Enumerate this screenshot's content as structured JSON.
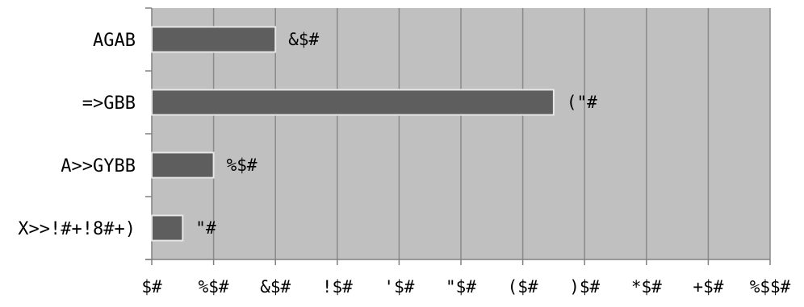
{
  "chart_data": {
    "type": "bar",
    "orientation": "horizontal",
    "categories": [
      "AGAB",
      "=>GBB",
      "A>>GYBB",
      "X>>!#+!8#+)"
    ],
    "values": [
      20,
      65,
      10,
      5
    ],
    "data_labels": [
      "&$#",
      "(\"#",
      "%$#",
      "\"#"
    ],
    "x_ticks": [
      "$#",
      "%$#",
      "&$#",
      "!$#",
      "'$#",
      "\"$#",
      "($#",
      ")$#",
      "*$#",
      "+$#",
      "%$$#"
    ],
    "xlim": [
      0,
      100
    ],
    "x_step": 10,
    "grid": true,
    "title": "",
    "xlabel": "",
    "ylabel": "",
    "colors": {
      "plot_bg": "#c0c0c0",
      "bar_fill": "#5e5e5e",
      "bar_stroke": "#e6e6e6",
      "grid": "#8a8a8a",
      "axis": "#808080"
    }
  }
}
